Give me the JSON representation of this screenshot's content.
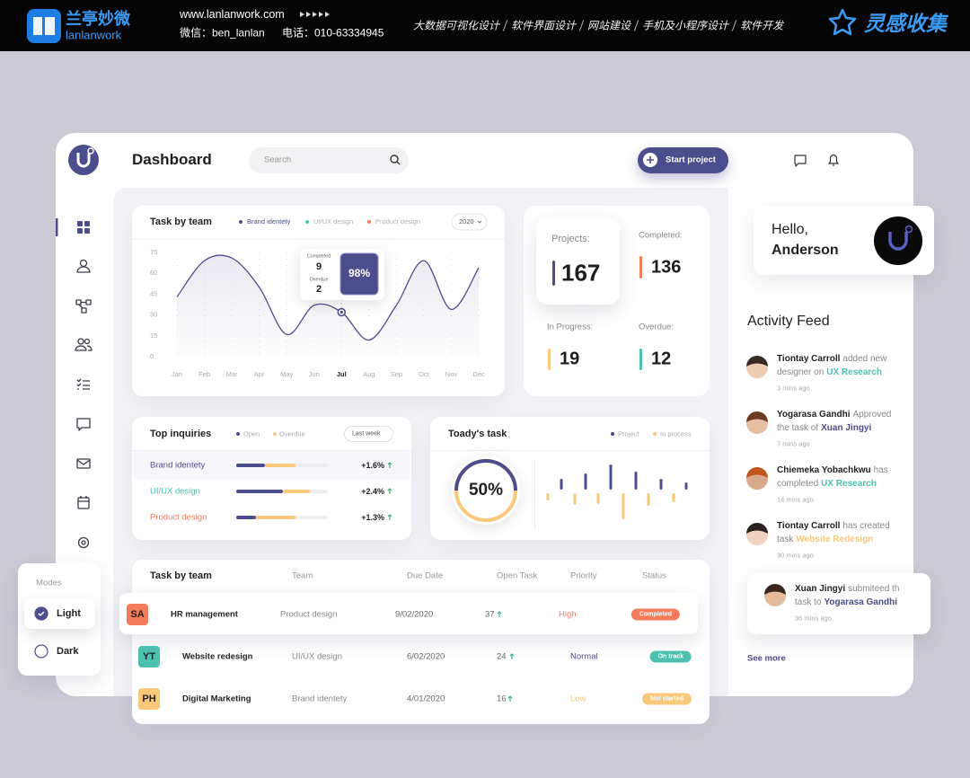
{
  "banner": {
    "logo_cn": "兰亭妙微",
    "logo_en": "lanlanwork",
    "url": "www.lanlanwork.com",
    "wechat": "微信：ben_lanlan",
    "phone": "电话：010-63334945",
    "services": [
      "大数据可视化设计",
      "软件界面设计",
      "网站建设",
      "手机及小程序设计",
      "软件开发"
    ],
    "brand": "灵感收集"
  },
  "header": {
    "title": "Dashboard",
    "search": "Search",
    "button": "Start project"
  },
  "chart_data": [
    {
      "type": "line",
      "title": "Task by team",
      "filter": "2020",
      "categories": [
        "Jan",
        "Feb",
        "Mar",
        "Apr",
        "May",
        "Jun",
        "Jul",
        "Aug",
        "Sep",
        "Oct",
        "Nov",
        "Dec"
      ],
      "series": [
        {
          "name": "Brand identety",
          "color": "#4b4d8c",
          "values": [
            43,
            69,
            71,
            50,
            16,
            37,
            32,
            12,
            37,
            69,
            34,
            64
          ]
        },
        {
          "name": "UI/UX design",
          "color": "#4dc1b0",
          "values": [
            null,
            null,
            null,
            null,
            null,
            null,
            null,
            null,
            null,
            null,
            null,
            null
          ]
        },
        {
          "name": "Product design",
          "color": "#f57c5b",
          "values": [
            null,
            null,
            null,
            null,
            null,
            null,
            null,
            null,
            null,
            null,
            null,
            null
          ]
        }
      ],
      "ylim": [
        0,
        75
      ],
      "yticks": [
        0,
        15,
        30,
        45,
        60,
        75
      ],
      "highlight_index": 6,
      "tooltip": {
        "completed_label": "Completed",
        "completed": 9,
        "overdue_label": "Overdue",
        "overdue": 2,
        "badge": "98%"
      }
    },
    {
      "type": "bar",
      "title": "Toady's task",
      "series": [
        {
          "name": "Project",
          "color": "#4b4d8c",
          "values": [
            12,
            18,
            28,
            20,
            12,
            8
          ]
        },
        {
          "name": "In process",
          "color": "#f8c97a",
          "values": [
            8,
            13,
            12,
            29,
            14,
            10
          ]
        }
      ],
      "donut": {
        "value": 50,
        "label": "50%"
      }
    }
  ],
  "stats": [
    {
      "label": "Projects:",
      "value": 167,
      "color": "#4b4d8c"
    },
    {
      "label": "Completed:",
      "value": 136,
      "color": "#f57c5b"
    },
    {
      "label": "In Progress:",
      "value": 19,
      "color": "#f8c97a"
    },
    {
      "label": "Overdue:",
      "value": 12,
      "color": "#4dc1b0"
    }
  ],
  "inquiries": {
    "title": "Top inquiries",
    "filter": "Last week",
    "legend": [
      {
        "name": "Open",
        "color": "#4b4d8c"
      },
      {
        "name": "Overdue",
        "color": "#f8c97a"
      }
    ],
    "rows": [
      {
        "name": "Brand identety",
        "color": "#4b4d8c",
        "open": 31,
        "overdue": 34,
        "change": "+1.6%"
      },
      {
        "name": "UI/UX design",
        "color": "#4dc1b0",
        "open": 51,
        "overdue": 29,
        "change": "+2.4%"
      },
      {
        "name": "Product design",
        "color": "#f57c5b",
        "open": 22,
        "overdue": 43,
        "change": "+1.3%"
      }
    ]
  },
  "hello": {
    "greeting": "Hello,",
    "name": "Anderson"
  },
  "feed": {
    "title": "Activity Feed",
    "items": [
      {
        "name": "Tiontay Carroll",
        "action": "added new designer on",
        "target": "UX Research",
        "target_color": "#4dc1b0",
        "time": "3 mins ago"
      },
      {
        "name": "Yogarasa Gandhi",
        "action": "Approved the task of",
        "target": "Xuan Jingyi",
        "target_color": "#4b4d8c",
        "time": "7 mins ago"
      },
      {
        "name": "Chiemeka Yobachkwu",
        "action": "has completed",
        "target": "UX Research",
        "target_color": "#4dc1b0",
        "time": "14 mins ago"
      },
      {
        "name": "Tiontay Carroll",
        "action": "has created task",
        "target": "Website Redesign",
        "target_color": "#f8c97a",
        "time": "30 mins ago"
      }
    ],
    "popup": {
      "name": "Xuan Jingyi",
      "action": "submiteed th task to",
      "target": "Yogarasa Gandhi",
      "target_color": "#4b4d8c",
      "time": "36 mins ago"
    },
    "more": "See more"
  },
  "table": {
    "title": "Task by team",
    "columns": [
      "Team",
      "Due Date",
      "Open Task",
      "Priority",
      "Status"
    ],
    "rows": [
      {
        "initials": "SA",
        "color": "#f57c5b",
        "name": "HR management",
        "team": "Product design",
        "due": "9/02/2020",
        "open": 37,
        "priority": "High",
        "priority_color": "#f57c5b",
        "status": "Completed",
        "status_color": "#f57c5b"
      },
      {
        "initials": "YT",
        "color": "#4dc1b0",
        "name": "Website redesign",
        "team": "UI/UX design",
        "due": "6/02/2020",
        "open": 24,
        "priority": "Normal",
        "priority_color": "#4b4d8c",
        "status": "On track",
        "status_color": "#4dc1b0"
      },
      {
        "initials": "PH",
        "color": "#f8c97a",
        "name": "Digital Marketing",
        "team": "Brand identety",
        "due": "4/01/2020",
        "open": 16,
        "priority": "Low",
        "priority_color": "#f8c97a",
        "status": "Not started",
        "status_color": "#f8c97a"
      }
    ]
  },
  "modes": {
    "title": "Modes",
    "options": [
      "Light",
      "Dark"
    ],
    "selected": 0
  }
}
